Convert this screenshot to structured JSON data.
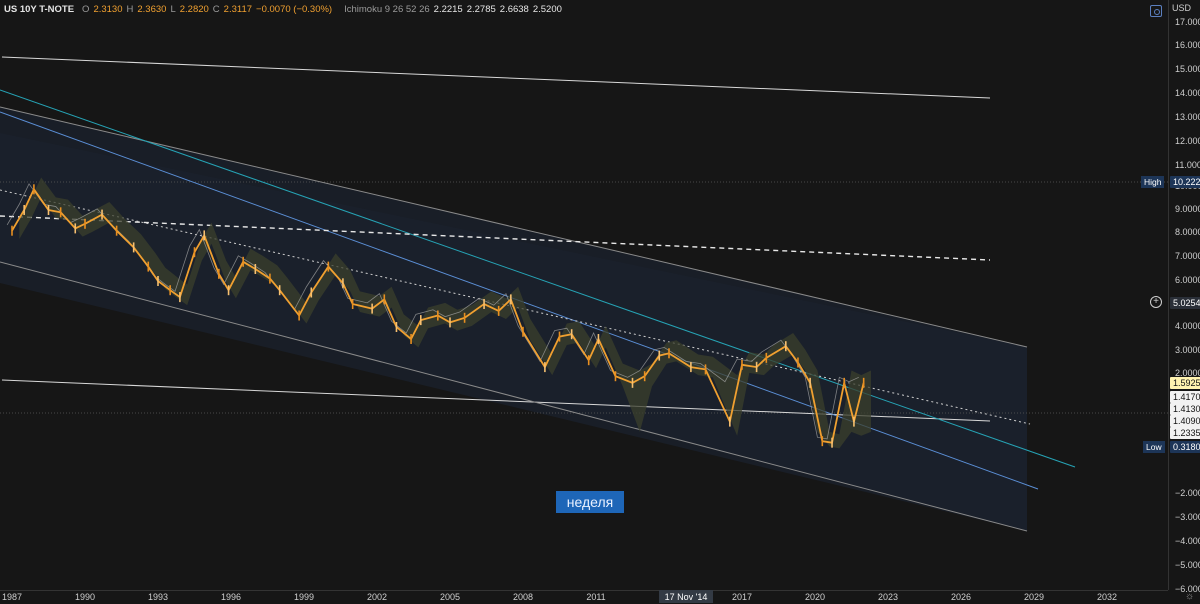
{
  "legend": {
    "symbol": "US 10Y T-NOTE",
    "open_label": "O",
    "open": "2.3130",
    "high_label": "H",
    "high": "2.3630",
    "low_label": "L",
    "low": "2.2820",
    "close_label": "C",
    "close": "2.3117",
    "change": "−0.0070 (−0.30%)",
    "indicator": "Ichimoku 9 26 52 26",
    "indicator_values": [
      "2.2215",
      "2.2785",
      "2.6638",
      "2.5200"
    ]
  },
  "currency": "USD",
  "week_label": "неделя",
  "cursor_date": "17 Nov '14",
  "price_badges": {
    "high_name": "High",
    "high_value": "10.2224",
    "low_name": "Low",
    "low_value": "0.3180",
    "cursor_value": "5.0254",
    "last_value": "1.5925",
    "ichimoku_values": [
      "1.4170",
      "1.4130",
      "1.4090",
      "1.2335"
    ]
  },
  "colors": {
    "price_candles": "#f0a030",
    "cloud_fill": "#3b3f2c",
    "channel_fill": "#1b2330",
    "teal_line": "#26a3b5",
    "blue_line": "#5b8fd6",
    "grey_line": "#8a8a8a",
    "white_line": "#d8d8d8",
    "badge_blue": "#1d3557",
    "last_badge": "#fff3b0"
  },
  "chart_data": {
    "type": "line",
    "title": "",
    "xlabel": "",
    "ylabel": "",
    "x_ticks": [
      "1987",
      "1990",
      "1993",
      "1996",
      "1999",
      "2002",
      "2005",
      "2008",
      "2011",
      "2017",
      "2020",
      "2023",
      "2026",
      "2029",
      "2032"
    ],
    "y_ticks": [
      "17.0000",
      "16.0000",
      "15.0000",
      "14.0000",
      "13.0000",
      "12.0000",
      "11.0000",
      "10.0000",
      "9.0000",
      "8.0000",
      "7.0000",
      "6.0000",
      "4.0000",
      "3.0000",
      "2.0000",
      "−2.0000",
      "−3.0000",
      "−4.0000",
      "−5.0000",
      "−6.0000"
    ],
    "ylim": [
      -6.6,
      17.9
    ],
    "xlim": [
      1986.9,
      2033.8
    ],
    "series": [
      {
        "values": [
          [
            1987.0,
            8.1
          ],
          [
            1987.5,
            9.0
          ],
          [
            1987.9,
            9.9
          ],
          [
            1988.5,
            9.0
          ],
          [
            1989.0,
            8.9
          ],
          [
            1989.6,
            8.2
          ],
          [
            1990.0,
            8.4
          ],
          [
            1990.7,
            8.8
          ],
          [
            1991.3,
            8.1
          ],
          [
            1992.0,
            7.4
          ],
          [
            1992.6,
            6.6
          ],
          [
            1993.0,
            6.0
          ],
          [
            1993.5,
            5.6
          ],
          [
            1993.9,
            5.3
          ],
          [
            1994.5,
            7.2
          ],
          [
            1994.9,
            7.9
          ],
          [
            1995.5,
            6.3
          ],
          [
            1995.9,
            5.6
          ],
          [
            1996.5,
            6.8
          ],
          [
            1997.0,
            6.5
          ],
          [
            1997.6,
            6.1
          ],
          [
            1998.0,
            5.6
          ],
          [
            1998.8,
            4.5
          ],
          [
            1999.3,
            5.5
          ],
          [
            2000.0,
            6.6
          ],
          [
            2000.6,
            5.9
          ],
          [
            2001.0,
            5.0
          ],
          [
            2001.8,
            4.8
          ],
          [
            2002.3,
            5.2
          ],
          [
            2002.8,
            4.0
          ],
          [
            2003.4,
            3.5
          ],
          [
            2003.8,
            4.3
          ],
          [
            2004.5,
            4.5
          ],
          [
            2005.0,
            4.2
          ],
          [
            2005.6,
            4.4
          ],
          [
            2006.4,
            5.0
          ],
          [
            2007.0,
            4.7
          ],
          [
            2007.5,
            5.2
          ],
          [
            2008.0,
            3.8
          ],
          [
            2008.9,
            2.3
          ],
          [
            2009.5,
            3.6
          ],
          [
            2010.0,
            3.7
          ],
          [
            2010.7,
            2.6
          ],
          [
            2011.1,
            3.5
          ],
          [
            2011.8,
            1.9
          ],
          [
            2012.5,
            1.6
          ],
          [
            2013.0,
            1.9
          ],
          [
            2013.6,
            2.8
          ],
          [
            2014.0,
            2.9
          ],
          [
            2014.9,
            2.3
          ],
          [
            2015.5,
            2.2
          ],
          [
            2016.5,
            1.4
          ],
          [
            2017.0,
            2.4
          ],
          [
            2017.6,
            2.3
          ],
          [
            2018.0,
            2.7
          ],
          [
            2018.8,
            3.2
          ],
          [
            2019.3,
            2.5
          ],
          [
            2019.8,
            1.6
          ],
          [
            2020.3,
            0.7
          ],
          [
            2020.7,
            0.6
          ],
          [
            2021.2,
            1.6
          ],
          [
            2021.6,
            1.4
          ],
          [
            2022.0,
            1.6
          ]
        ]
      }
    ]
  }
}
